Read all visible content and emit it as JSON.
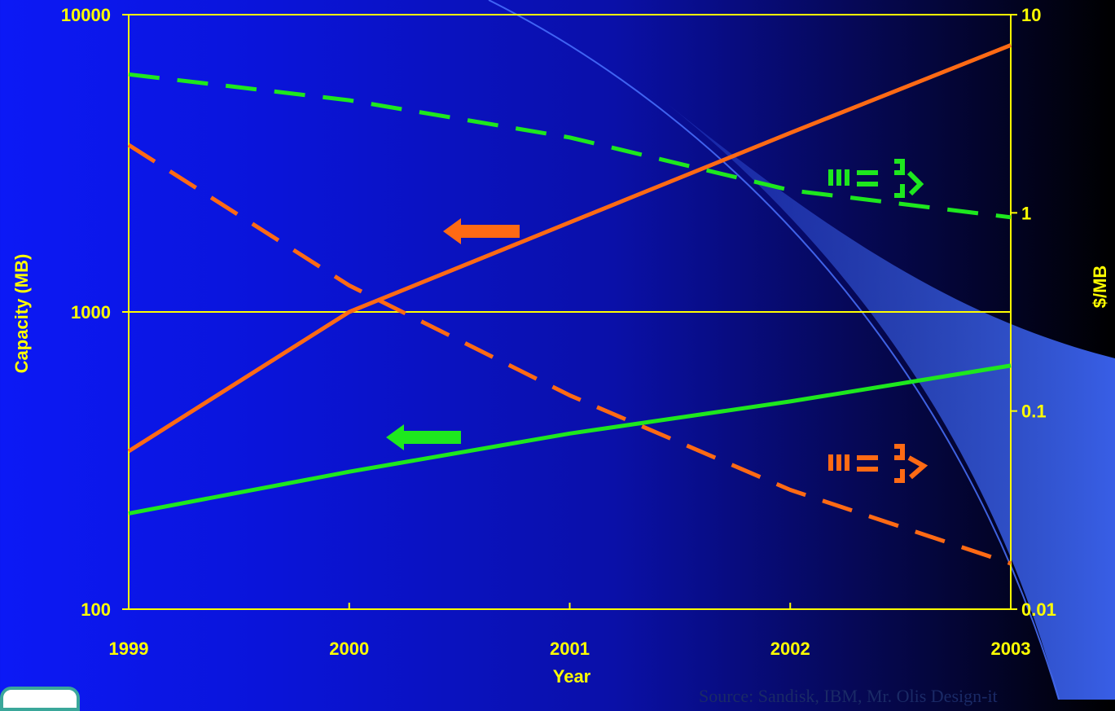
{
  "chart_data": {
    "type": "line",
    "title": "",
    "xlabel": "Year",
    "ylabel": "Capacity (MB)",
    "y2label": "$/MB",
    "x": [
      1999,
      2000,
      2001,
      2002,
      2003
    ],
    "x_tick_labels": [
      "1999",
      "2000",
      "2001",
      "2002",
      "2003"
    ],
    "y_ticks": [
      100,
      1000,
      10000
    ],
    "y_tick_labels": [
      "100",
      "1000",
      "10000"
    ],
    "y2_ticks": [
      0.01,
      0.1,
      1,
      10
    ],
    "y2_tick_labels": [
      "0.01",
      "0.1",
      "1",
      "10"
    ],
    "ylim": [
      100,
      10000
    ],
    "y2lim": [
      0.01,
      10
    ],
    "yscale": "log",
    "y2scale": "log",
    "grid": "horizontal at 1000",
    "series": [
      {
        "axis": "left",
        "color": "#ff6a14",
        "dash": "solid",
        "values": [
          340,
          1000,
          2000,
          4000,
          7900
        ]
      },
      {
        "axis": "left",
        "color": "#1ee81e",
        "dash": "solid",
        "values": [
          210,
          290,
          390,
          500,
          660
        ]
      },
      {
        "axis": "right",
        "color": "#ff6a14",
        "dash": "dashed",
        "values": [
          2.2,
          0.43,
          0.12,
          0.04,
          0.017
        ]
      },
      {
        "axis": "right",
        "color": "#1ee81e",
        "dash": "dashed",
        "values": [
          5.0,
          3.7,
          2.4,
          1.3,
          0.95
        ]
      }
    ],
    "marker_colors": {
      "background": "#0c19f6",
      "axis": "#ffff00",
      "orange": "#ff6a14",
      "green": "#1ee81e",
      "overlay": "#3b63f2"
    }
  },
  "source": "Source: Sandisk, IBM, Mr. Olis Design-it"
}
